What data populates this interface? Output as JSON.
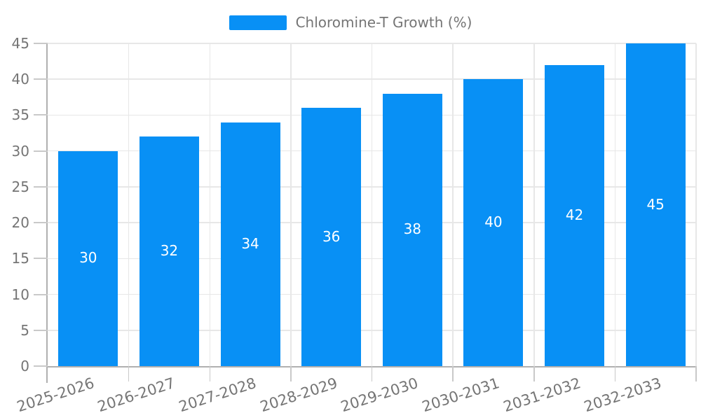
{
  "legend": {
    "label": "Chloromine-T Growth (%)"
  },
  "chart_data": {
    "type": "bar",
    "title": "Chloromine-T Growth (%)",
    "categories": [
      "2025-2026",
      "2026-2027",
      "2027-2028",
      "2028-2029",
      "2029-2030",
      "2030-2031",
      "2031-2032",
      "2032-2033"
    ],
    "values": [
      30,
      32,
      34,
      36,
      38,
      40,
      42,
      45
    ],
    "value_labels": [
      "30",
      "32",
      "34",
      "36",
      "38",
      "40",
      "42",
      "45"
    ],
    "xlabel": "",
    "ylabel": "",
    "ylim": [
      0,
      45
    ],
    "ytick_step": 5,
    "yticks": [
      0,
      5,
      10,
      15,
      20,
      25,
      30,
      35,
      40,
      45
    ],
    "grid": true,
    "legend_position": "top",
    "colors": {
      "bar": "#0890f5",
      "value_label": "#ffffff",
      "axis_label": "#757575",
      "legend_text": "#757575",
      "gridline": "#e7e7e7",
      "axis_line": "#b0b0b0",
      "tick_mark": "#c9c9c9",
      "background": "#ffffff"
    }
  }
}
